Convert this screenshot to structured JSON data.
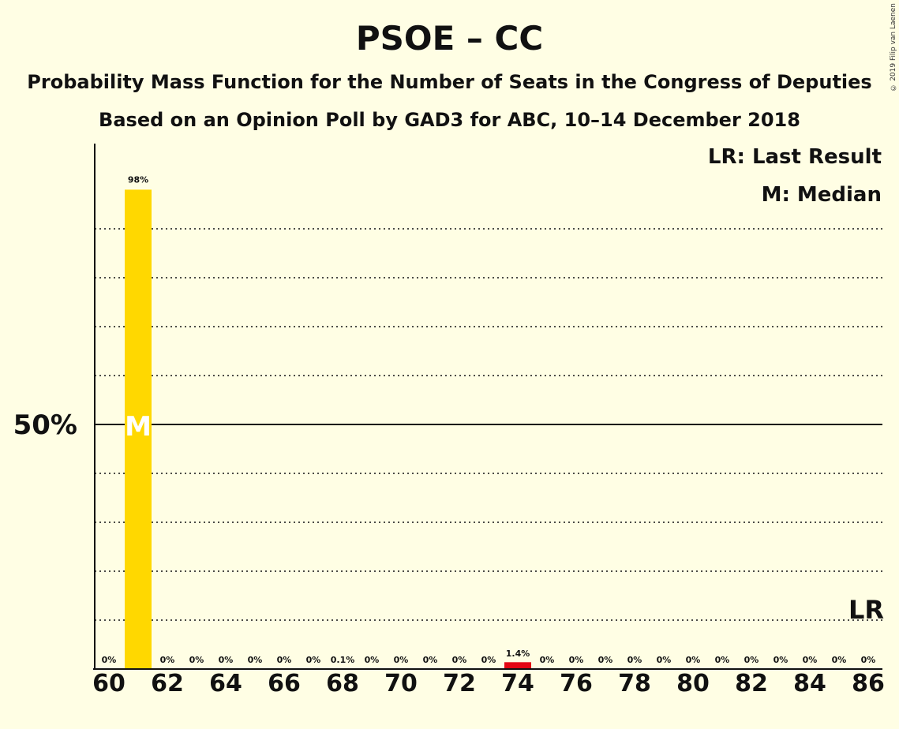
{
  "header": {
    "title": "PSOE – CC",
    "subtitle1": "Probability Mass Function for the Number of Seats in the Congress of Deputies",
    "subtitle2": "Based on an Opinion Poll by GAD3 for ABC, 10–14 December 2018",
    "copyright": "© 2019 Filip van Laenen"
  },
  "legend": {
    "lr": "LR: Last Result",
    "median": "M: Median"
  },
  "colors": {
    "background": "#FFFEE4",
    "median_bar": "#FFD800",
    "last_result_bar": "#E30613",
    "text": "#111111"
  },
  "chart_data": {
    "type": "bar",
    "title": "PSOE – CC",
    "x": [
      60,
      61,
      62,
      63,
      64,
      65,
      66,
      67,
      68,
      69,
      70,
      71,
      72,
      73,
      74,
      75,
      76,
      77,
      78,
      79,
      80,
      81,
      82,
      83,
      84,
      85,
      86
    ],
    "values": [
      0,
      98,
      0,
      0,
      0,
      0,
      0,
      0,
      0.1,
      0,
      0,
      0,
      0,
      0,
      1.4,
      0,
      0,
      0,
      0,
      0,
      0,
      0,
      0,
      0,
      0,
      0,
      0
    ],
    "labels": [
      "0%",
      "98%",
      "0%",
      "0%",
      "0%",
      "0%",
      "0%",
      "0%",
      "0.1%",
      "0%",
      "0%",
      "0%",
      "0%",
      "0%",
      "1.4%",
      "0%",
      "0%",
      "0%",
      "0%",
      "0%",
      "0%",
      "0%",
      "0%",
      "0%",
      "0%",
      "0%",
      "0%"
    ],
    "xticks": [
      "60",
      "62",
      "64",
      "66",
      "68",
      "70",
      "72",
      "74",
      "76",
      "78",
      "80",
      "82",
      "84",
      "86"
    ],
    "ytick_label": "50%",
    "ytick_value": 50,
    "ylim": [
      0,
      100
    ],
    "grid": "dotted every 10%",
    "median_seat": 61,
    "median_marker": "M",
    "last_result_seat": 86,
    "last_result_marker": "LR",
    "highlight_seat": 74
  }
}
